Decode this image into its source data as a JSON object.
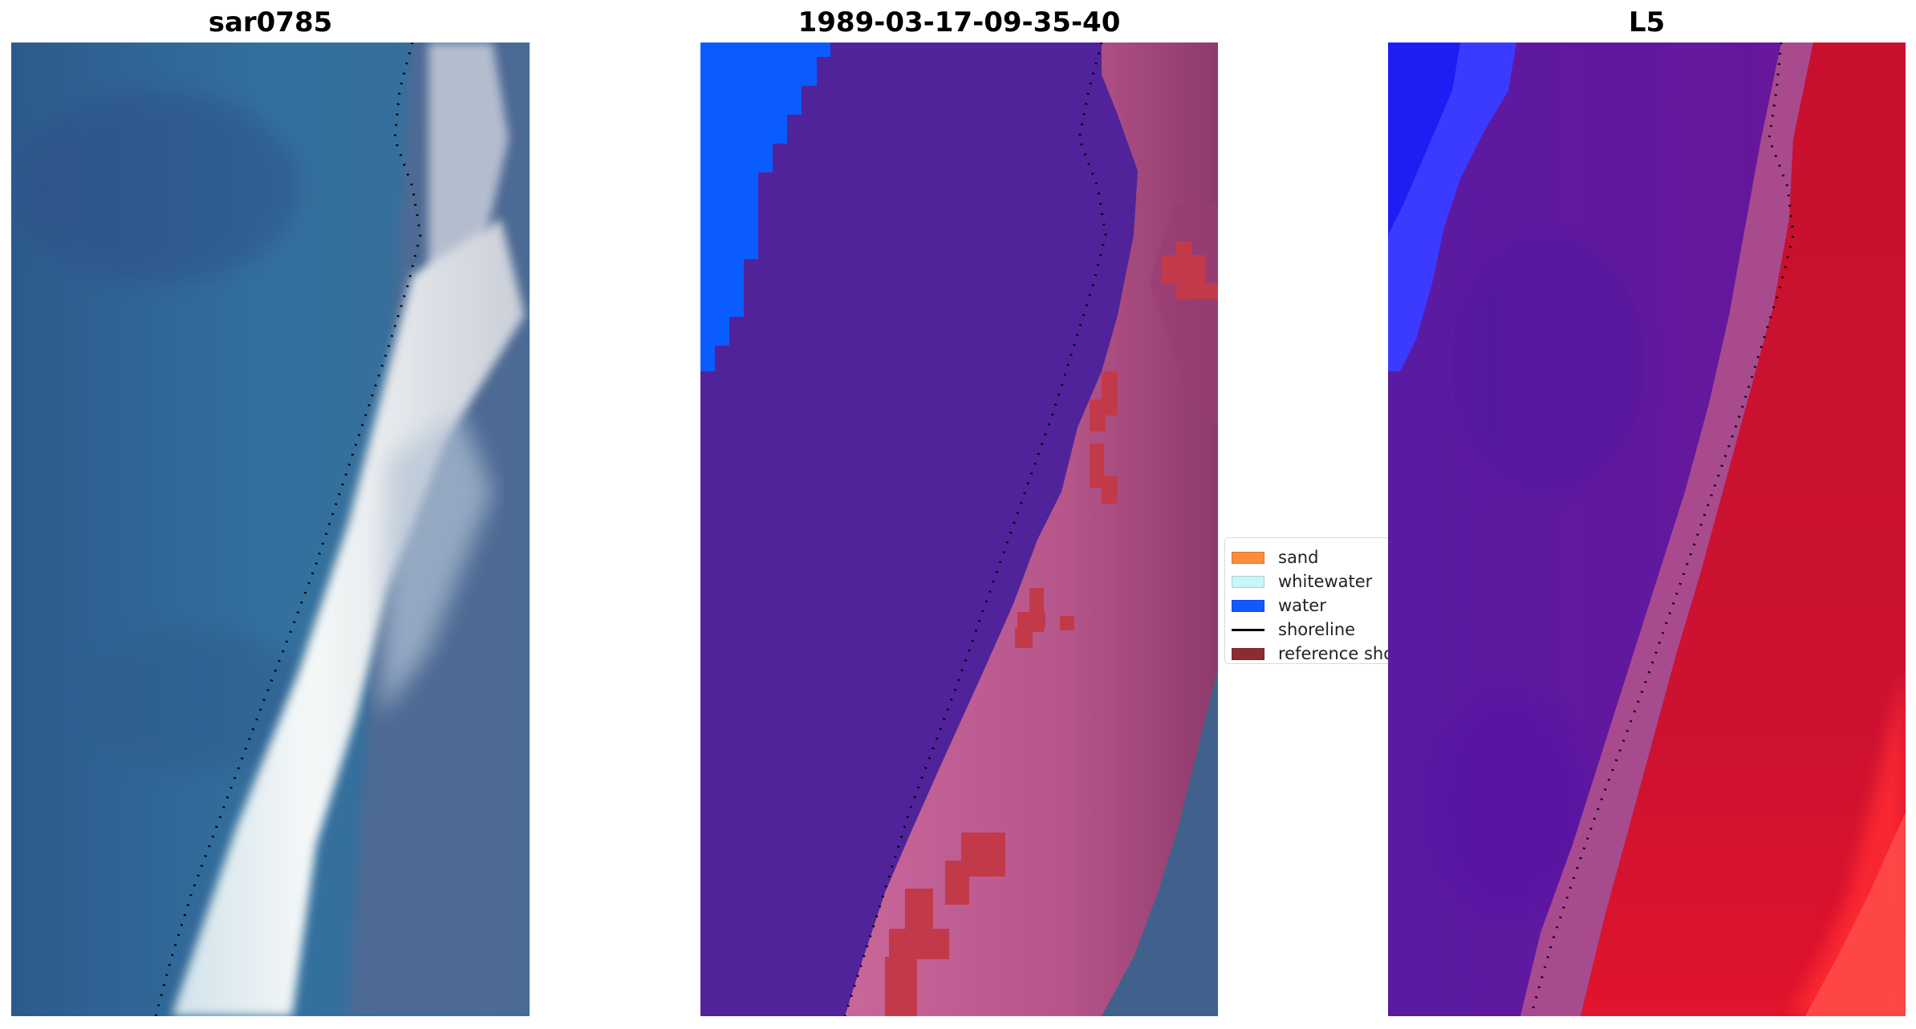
{
  "panels": [
    {
      "title": "sar0785"
    },
    {
      "title": "1989-03-17-09-35-40"
    },
    {
      "title": "L5"
    }
  ],
  "legend": {
    "placement": "center, between second and third panel",
    "items": [
      {
        "label": "sand",
        "color": "#ff8c3a",
        "kind": "patch"
      },
      {
        "label": "whitewater",
        "color": "#c9f5f7",
        "kind": "patch"
      },
      {
        "label": "water",
        "color": "#1159ff",
        "kind": "patch"
      },
      {
        "label": "shoreline",
        "color": "#000000",
        "kind": "line"
      },
      {
        "label": "reference shoreline",
        "color": "#8b2c33",
        "kind": "patch"
      }
    ]
  },
  "colors": {
    "sea_rgb": "#2e5f8e",
    "beach_white": "#eef2f4",
    "classified_sand_purple": "#52249a",
    "classified_water": "#0a5cff",
    "classified_beach_pink": "#b8598c",
    "classified_red_patch": "#c23a4a",
    "ndwi_purple": "#5e1a9e",
    "ndwi_red": "#c8102e",
    "ndwi_blue": "#2a2aff"
  }
}
